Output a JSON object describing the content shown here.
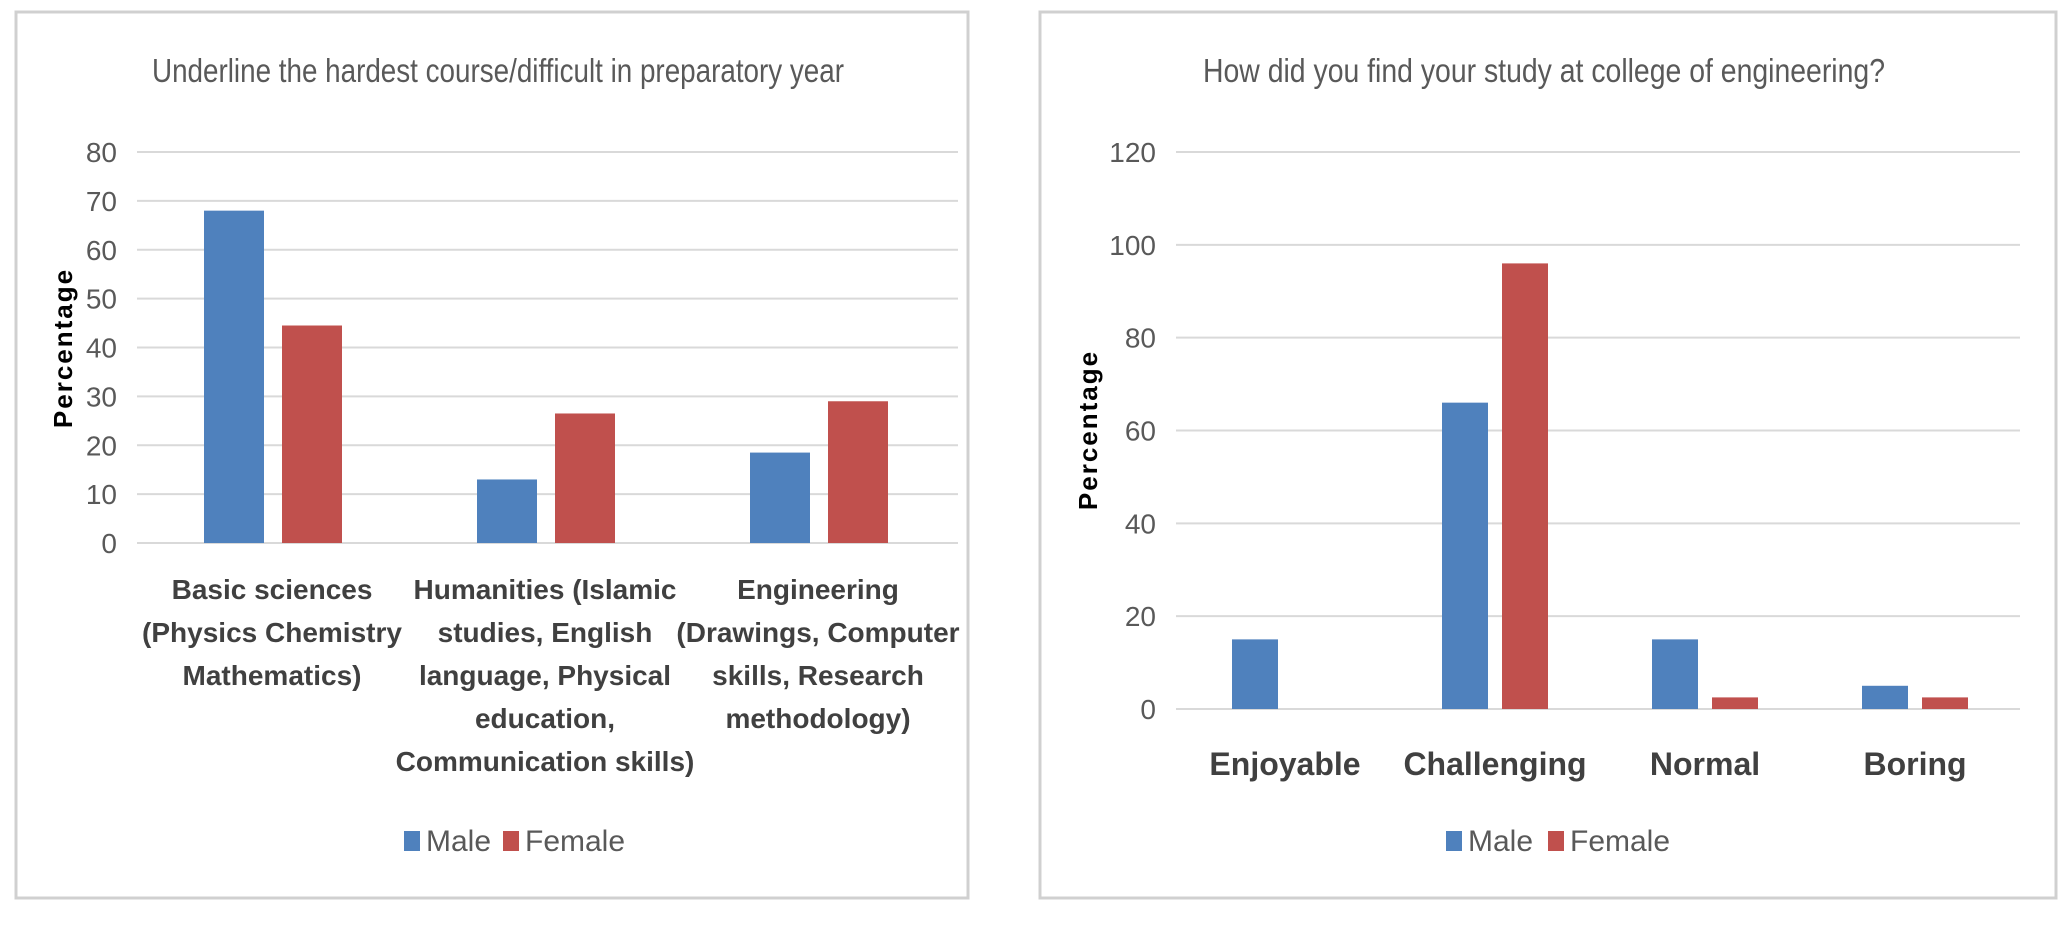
{
  "colors": {
    "male": "#4F81BD",
    "female": "#C0504D",
    "grid": "#D9D9D9",
    "text": "#595959",
    "axisText": "#404040",
    "frame": "#D0D0D0"
  },
  "chart_data": [
    {
      "type": "bar",
      "title": "Underline the hardest course/difficult in preparatory year",
      "xlabel": "",
      "ylabel": "Percentage",
      "ylim": [
        0,
        80
      ],
      "yticks": [
        0,
        10,
        20,
        30,
        40,
        50,
        60,
        70,
        80
      ],
      "categories": [
        [
          "Basic sciences",
          "(Physics Chemistry",
          "Mathematics)"
        ],
        [
          "Humanities (Islamic",
          "studies, English",
          "language, Physical",
          "education,",
          "Communication skills)"
        ],
        [
          "Engineering",
          "(Drawings, Computer",
          "skills, Research",
          "methodology)"
        ]
      ],
      "series": [
        {
          "name": "Male",
          "values": [
            68,
            13,
            18.5
          ]
        },
        {
          "name": "Female",
          "values": [
            44.5,
            26.5,
            29
          ]
        }
      ],
      "legend": "bottom",
      "grid": true
    },
    {
      "type": "bar",
      "title": "How did you find your study at college of engineering?",
      "xlabel": "",
      "ylabel": "Percentage",
      "ylim": [
        0,
        120
      ],
      "yticks": [
        0,
        20,
        40,
        60,
        80,
        100,
        120
      ],
      "categories": [
        [
          "Enjoyable"
        ],
        [
          "Challenging"
        ],
        [
          "Normal"
        ],
        [
          "Boring"
        ]
      ],
      "series": [
        {
          "name": "Male",
          "values": [
            15,
            66,
            15,
            5
          ]
        },
        {
          "name": "Female",
          "values": [
            0,
            96,
            2.5,
            2.5
          ]
        }
      ],
      "legend": "bottom",
      "grid": true
    }
  ]
}
